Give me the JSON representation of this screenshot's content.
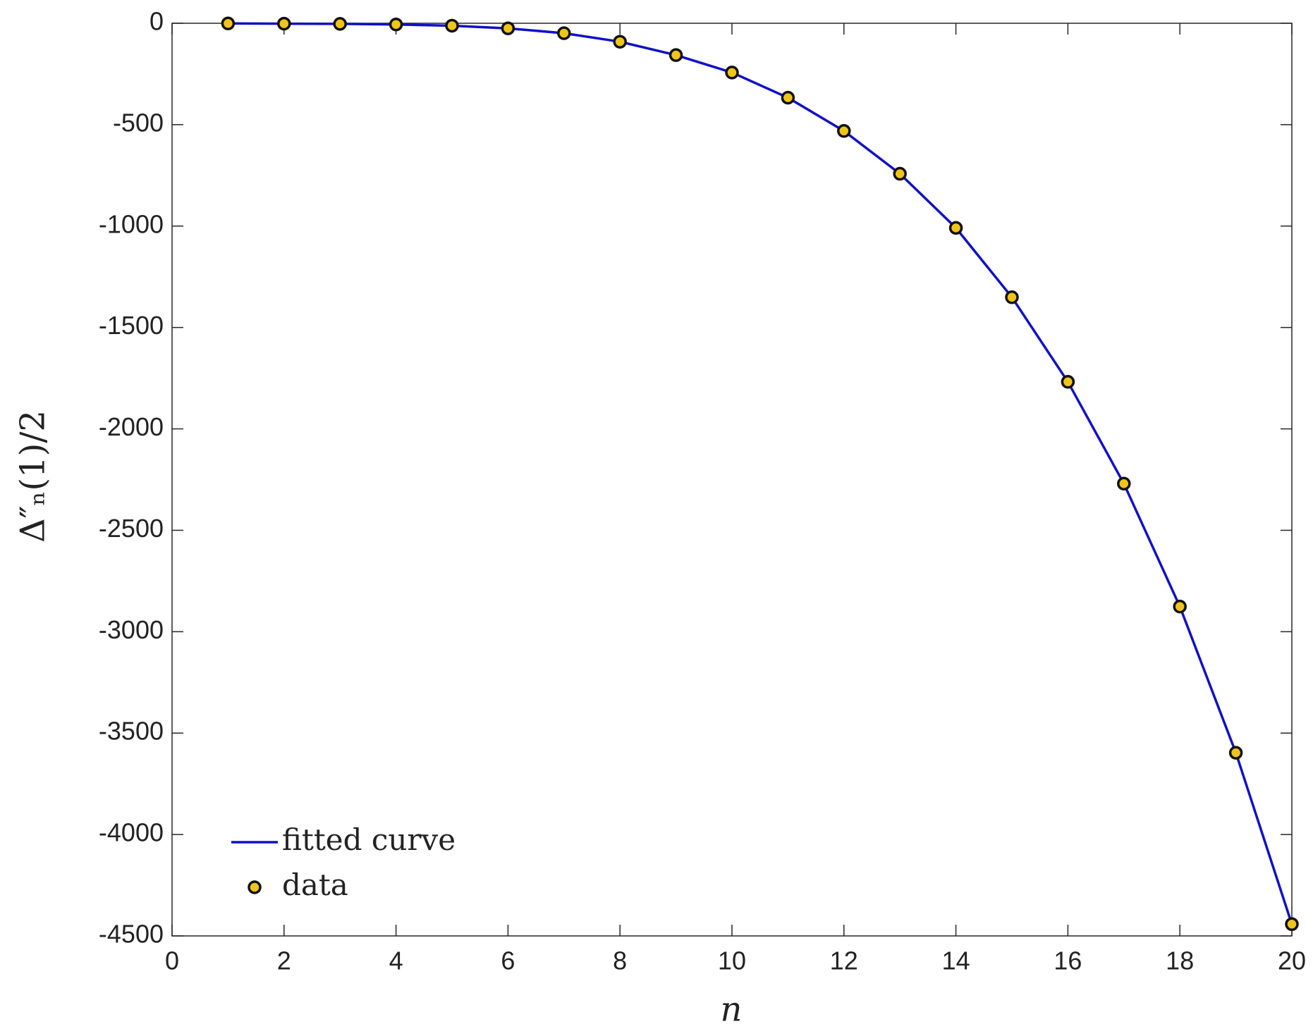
{
  "chart_data": {
    "type": "line",
    "x_label": "n",
    "y_label": "Δ″ₙ(1)/2",
    "x": [
      1,
      2,
      3,
      4,
      5,
      6,
      7,
      8,
      9,
      10,
      11,
      12,
      13,
      14,
      15,
      16,
      17,
      18,
      19,
      20
    ],
    "series": [
      {
        "name": "fitted curve",
        "kind": "line",
        "color": "#1010c8",
        "values": [
          -1,
          -2,
          -3,
          -6,
          -12,
          -25,
          -49,
          -91,
          -157,
          -243,
          -367,
          -531,
          -742,
          -1009,
          -1351,
          -1768,
          -2270,
          -2876,
          -3597,
          -4442
        ]
      },
      {
        "name": "data",
        "kind": "scatter",
        "color": "#f0c419",
        "values": [
          -1,
          -2,
          -3,
          -6,
          -12,
          -25,
          -49,
          -91,
          -157,
          -243,
          -367,
          -531,
          -742,
          -1009,
          -1351,
          -1768,
          -2270,
          -2876,
          -3597,
          -4442
        ]
      }
    ],
    "xlim": [
      0,
      20
    ],
    "xticks": [
      0,
      2,
      4,
      6,
      8,
      10,
      12,
      14,
      16,
      18,
      20
    ],
    "ylim": [
      -4500,
      0
    ],
    "yticks": [
      -4500,
      -4000,
      -3500,
      -3000,
      -2500,
      -2000,
      -1500,
      -1000,
      -500,
      0
    ],
    "grid": false,
    "legend_position": "lower left"
  }
}
